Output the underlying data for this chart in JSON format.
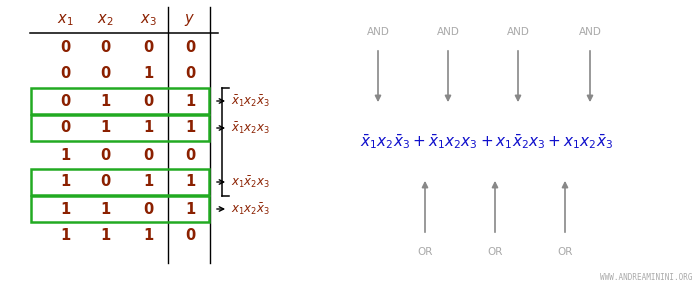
{
  "table_rows": [
    [
      0,
      0,
      0,
      0,
      false
    ],
    [
      0,
      0,
      1,
      0,
      false
    ],
    [
      0,
      1,
      0,
      1,
      true
    ],
    [
      0,
      1,
      1,
      1,
      true
    ],
    [
      1,
      0,
      0,
      0,
      false
    ],
    [
      1,
      0,
      1,
      1,
      true
    ],
    [
      1,
      1,
      0,
      1,
      true
    ],
    [
      1,
      1,
      1,
      0,
      false
    ]
  ],
  "highlighted_rows": [
    2,
    3,
    5,
    6
  ],
  "arrow_labels_right": [
    [
      2,
      "$\\bar{x}_1x_2\\bar{x}_3$"
    ],
    [
      3,
      "$\\bar{x}_1x_2x_3$"
    ],
    [
      5,
      "$x_1\\bar{x}_2x_3$"
    ],
    [
      6,
      "$x_1x_2\\bar{x}_3$"
    ]
  ],
  "watermark": "WWW.ANDREAMININI.ORG",
  "highlight_color": "#22aa22",
  "text_color": "#8B2000",
  "arrow_color": "#888888",
  "formula_color": "#1010cc",
  "and_label_color": "#aaaaaa",
  "or_label_color": "#aaaaaa",
  "black": "#000000"
}
